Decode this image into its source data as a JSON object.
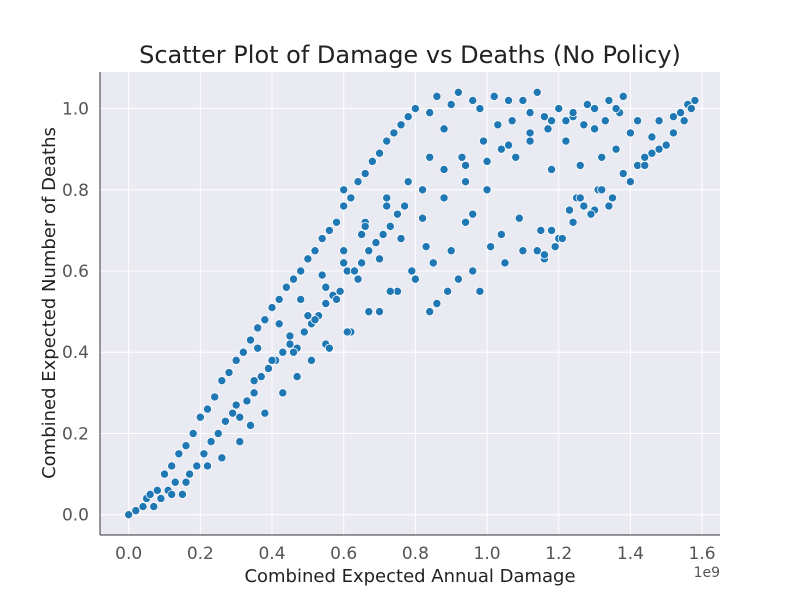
{
  "chart_data": {
    "type": "scatter",
    "title": "Scatter Plot of Damage vs Deaths (No Policy)",
    "xlabel": "Combined Expected Annual Damage",
    "ylabel": "Combined Expected Number of Deaths",
    "x_offset_label": "1e9",
    "xlim": [
      -0.08,
      1.65
    ],
    "ylim": [
      -0.05,
      1.09
    ],
    "x_ticks": [
      0.0,
      0.2,
      0.4,
      0.6,
      0.8,
      1.0,
      1.2,
      1.4,
      1.6
    ],
    "x_tick_labels": [
      "0.0",
      "0.2",
      "0.4",
      "0.6",
      "0.8",
      "1.0",
      "1.2",
      "1.4",
      "1.6"
    ],
    "y_ticks": [
      0.0,
      0.2,
      0.4,
      0.6,
      0.8,
      1.0
    ],
    "y_tick_labels": [
      "0.0",
      "0.2",
      "0.4",
      "0.6",
      "0.8",
      "1.0"
    ],
    "grid": true,
    "marker_color": "#1f77b4",
    "background_color": "#eaeaf2",
    "points": [
      [
        0.0,
        0.0
      ],
      [
        0.02,
        0.01
      ],
      [
        0.04,
        0.02
      ],
      [
        0.05,
        0.04
      ],
      [
        0.06,
        0.05
      ],
      [
        0.07,
        0.02
      ],
      [
        0.08,
        0.06
      ],
      [
        0.09,
        0.04
      ],
      [
        0.1,
        0.1
      ],
      [
        0.11,
        0.06
      ],
      [
        0.12,
        0.12
      ],
      [
        0.13,
        0.08
      ],
      [
        0.14,
        0.15
      ],
      [
        0.15,
        0.05
      ],
      [
        0.16,
        0.17
      ],
      [
        0.17,
        0.1
      ],
      [
        0.18,
        0.2
      ],
      [
        0.19,
        0.12
      ],
      [
        0.2,
        0.24
      ],
      [
        0.21,
        0.15
      ],
      [
        0.22,
        0.26
      ],
      [
        0.23,
        0.18
      ],
      [
        0.24,
        0.29
      ],
      [
        0.25,
        0.2
      ],
      [
        0.26,
        0.33
      ],
      [
        0.27,
        0.23
      ],
      [
        0.28,
        0.35
      ],
      [
        0.29,
        0.25
      ],
      [
        0.3,
        0.38
      ],
      [
        0.31,
        0.24
      ],
      [
        0.32,
        0.4
      ],
      [
        0.33,
        0.28
      ],
      [
        0.34,
        0.43
      ],
      [
        0.35,
        0.3
      ],
      [
        0.36,
        0.46
      ],
      [
        0.37,
        0.34
      ],
      [
        0.38,
        0.48
      ],
      [
        0.39,
        0.36
      ],
      [
        0.4,
        0.51
      ],
      [
        0.41,
        0.38
      ],
      [
        0.42,
        0.53
      ],
      [
        0.43,
        0.4
      ],
      [
        0.44,
        0.56
      ],
      [
        0.45,
        0.42
      ],
      [
        0.46,
        0.58
      ],
      [
        0.47,
        0.41
      ],
      [
        0.48,
        0.6
      ],
      [
        0.49,
        0.45
      ],
      [
        0.5,
        0.63
      ],
      [
        0.51,
        0.47
      ],
      [
        0.52,
        0.65
      ],
      [
        0.53,
        0.49
      ],
      [
        0.54,
        0.68
      ],
      [
        0.55,
        0.52
      ],
      [
        0.56,
        0.7
      ],
      [
        0.57,
        0.54
      ],
      [
        0.58,
        0.72
      ],
      [
        0.59,
        0.55
      ],
      [
        0.6,
        0.76
      ],
      [
        0.61,
        0.6
      ],
      [
        0.62,
        0.78
      ],
      [
        0.63,
        0.6
      ],
      [
        0.64,
        0.82
      ],
      [
        0.65,
        0.62
      ],
      [
        0.66,
        0.84
      ],
      [
        0.67,
        0.65
      ],
      [
        0.68,
        0.87
      ],
      [
        0.69,
        0.67
      ],
      [
        0.7,
        0.89
      ],
      [
        0.71,
        0.69
      ],
      [
        0.72,
        0.92
      ],
      [
        0.73,
        0.71
      ],
      [
        0.74,
        0.94
      ],
      [
        0.75,
        0.74
      ],
      [
        0.76,
        0.96
      ],
      [
        0.77,
        0.76
      ],
      [
        0.78,
        0.98
      ],
      [
        0.8,
        1.0
      ],
      [
        0.82,
        0.8
      ],
      [
        0.84,
        0.99
      ],
      [
        0.86,
        1.03
      ],
      [
        0.88,
        0.85
      ],
      [
        0.9,
        1.01
      ],
      [
        0.92,
        1.04
      ],
      [
        0.94,
        0.86
      ],
      [
        0.96,
        1.02
      ],
      [
        0.98,
        1.0
      ],
      [
        1.0,
        0.8
      ],
      [
        1.02,
        1.03
      ],
      [
        1.04,
        0.9
      ],
      [
        1.06,
        1.02
      ],
      [
        1.08,
        0.88
      ],
      [
        1.1,
        1.02
      ],
      [
        1.12,
        0.92
      ],
      [
        1.14,
        1.04
      ],
      [
        1.16,
        0.98
      ],
      [
        1.18,
        0.85
      ],
      [
        1.2,
        1.0
      ],
      [
        1.22,
        0.92
      ],
      [
        1.24,
        0.98
      ],
      [
        1.26,
        0.86
      ],
      [
        1.28,
        1.01
      ],
      [
        1.3,
        0.95
      ],
      [
        1.32,
        0.88
      ],
      [
        1.34,
        1.02
      ],
      [
        1.36,
        0.9
      ],
      [
        1.38,
        1.03
      ],
      [
        1.4,
        0.94
      ],
      [
        1.42,
        0.97
      ],
      [
        1.44,
        0.88
      ],
      [
        1.46,
        0.93
      ],
      [
        1.48,
        0.97
      ],
      [
        1.5,
        0.91
      ],
      [
        1.52,
        0.98
      ],
      [
        1.54,
        0.99
      ],
      [
        1.56,
        1.01
      ],
      [
        1.58,
        1.02
      ],
      [
        0.55,
        0.42
      ],
      [
        0.62,
        0.45
      ],
      [
        0.7,
        0.5
      ],
      [
        0.75,
        0.55
      ],
      [
        0.8,
        0.58
      ],
      [
        0.85,
        0.62
      ],
      [
        0.9,
        0.65
      ],
      [
        0.98,
        0.55
      ],
      [
        1.05,
        0.62
      ],
      [
        1.1,
        0.65
      ],
      [
        1.15,
        0.7
      ],
      [
        1.2,
        0.68
      ],
      [
        1.25,
        0.78
      ],
      [
        1.3,
        0.75
      ],
      [
        1.35,
        0.78
      ],
      [
        1.4,
        0.82
      ],
      [
        0.6,
        0.8
      ],
      [
        0.66,
        0.72
      ],
      [
        0.72,
        0.78
      ],
      [
        0.78,
        0.82
      ],
      [
        0.84,
        0.88
      ],
      [
        0.88,
        0.95
      ],
      [
        0.93,
        0.88
      ],
      [
        0.99,
        0.92
      ],
      [
        1.03,
        0.96
      ],
      [
        1.07,
        0.97
      ],
      [
        1.12,
        0.99
      ],
      [
        1.17,
        0.95
      ],
      [
        1.22,
        0.97
      ],
      [
        1.27,
        0.96
      ],
      [
        1.33,
        0.97
      ],
      [
        1.37,
        0.99
      ],
      [
        0.46,
        0.4
      ],
      [
        0.52,
        0.48
      ],
      [
        0.58,
        0.53
      ],
      [
        0.64,
        0.58
      ],
      [
        0.7,
        0.63
      ],
      [
        0.76,
        0.68
      ],
      [
        0.82,
        0.73
      ],
      [
        0.88,
        0.78
      ],
      [
        0.94,
        0.82
      ],
      [
        1.0,
        0.87
      ],
      [
        1.06,
        0.91
      ],
      [
        1.12,
        0.94
      ],
      [
        1.18,
        0.97
      ],
      [
        1.24,
        0.99
      ],
      [
        1.3,
        1.0
      ],
      [
        1.36,
        1.0
      ],
      [
        0.3,
        0.27
      ],
      [
        0.35,
        0.33
      ],
      [
        0.4,
        0.38
      ],
      [
        0.45,
        0.44
      ],
      [
        0.5,
        0.49
      ],
      [
        0.55,
        0.56
      ],
      [
        0.6,
        0.62
      ],
      [
        0.65,
        0.69
      ],
      [
        0.36,
        0.41
      ],
      [
        0.42,
        0.47
      ],
      [
        0.48,
        0.53
      ],
      [
        0.54,
        0.59
      ],
      [
        0.6,
        0.65
      ],
      [
        0.66,
        0.71
      ],
      [
        0.72,
        0.76
      ],
      [
        0.78,
        0.82
      ],
      [
        1.14,
        0.65
      ],
      [
        1.16,
        0.63
      ],
      [
        1.18,
        0.7
      ],
      [
        1.21,
        0.68
      ],
      [
        1.23,
        0.75
      ],
      [
        1.26,
        0.78
      ],
      [
        1.29,
        0.74
      ],
      [
        1.31,
        0.8
      ],
      [
        1.16,
        0.64
      ],
      [
        1.19,
        0.66
      ],
      [
        1.24,
        0.72
      ],
      [
        1.27,
        0.76
      ],
      [
        1.32,
        0.8
      ],
      [
        1.34,
        0.76
      ],
      [
        1.38,
        0.84
      ],
      [
        1.42,
        0.86
      ],
      [
        1.44,
        0.86
      ],
      [
        1.46,
        0.89
      ],
      [
        1.48,
        0.9
      ],
      [
        1.52,
        0.94
      ],
      [
        1.55,
        0.97
      ],
      [
        1.57,
        1.0
      ],
      [
        0.94,
        0.72
      ],
      [
        0.96,
        0.74
      ],
      [
        0.84,
        0.5
      ],
      [
        0.86,
        0.52
      ],
      [
        0.89,
        0.55
      ],
      [
        0.92,
        0.58
      ],
      [
        0.96,
        0.6
      ],
      [
        1.01,
        0.66
      ],
      [
        1.04,
        0.69
      ],
      [
        1.09,
        0.73
      ],
      [
        0.12,
        0.05
      ],
      [
        0.16,
        0.08
      ],
      [
        0.22,
        0.12
      ],
      [
        0.26,
        0.14
      ],
      [
        0.31,
        0.18
      ],
      [
        0.34,
        0.22
      ],
      [
        0.38,
        0.25
      ],
      [
        0.43,
        0.3
      ],
      [
        0.47,
        0.34
      ],
      [
        0.51,
        0.38
      ],
      [
        0.56,
        0.41
      ],
      [
        0.61,
        0.45
      ],
      [
        0.67,
        0.5
      ],
      [
        0.73,
        0.55
      ],
      [
        0.79,
        0.6
      ],
      [
        0.83,
        0.66
      ]
    ]
  }
}
